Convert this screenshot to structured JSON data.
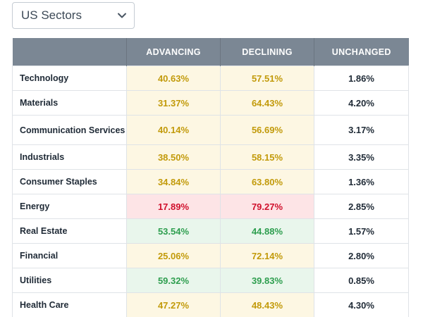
{
  "selector": {
    "label": "US Sectors"
  },
  "table": {
    "headers": [
      "",
      "ADVANCING",
      "DECLINING",
      "UNCHANGED"
    ],
    "rows": [
      {
        "name": "Technology",
        "advancing": "40.63%",
        "declining": "57.51%",
        "unchanged": "1.86%",
        "tone": "yellow"
      },
      {
        "name": "Materials",
        "advancing": "31.37%",
        "declining": "64.43%",
        "unchanged": "4.20%",
        "tone": "yellow"
      },
      {
        "name": "Communication Services",
        "advancing": "40.14%",
        "declining": "56.69%",
        "unchanged": "3.17%",
        "tone": "yellow"
      },
      {
        "name": "Industrials",
        "advancing": "38.50%",
        "declining": "58.15%",
        "unchanged": "3.35%",
        "tone": "yellow"
      },
      {
        "name": "Consumer Staples",
        "advancing": "34.84%",
        "declining": "63.80%",
        "unchanged": "1.36%",
        "tone": "yellow"
      },
      {
        "name": "Energy",
        "advancing": "17.89%",
        "declining": "79.27%",
        "unchanged": "2.85%",
        "tone": "red"
      },
      {
        "name": "Real Estate",
        "advancing": "53.54%",
        "declining": "44.88%",
        "unchanged": "1.57%",
        "tone": "green"
      },
      {
        "name": "Financial",
        "advancing": "25.06%",
        "declining": "72.14%",
        "unchanged": "2.80%",
        "tone": "yellow"
      },
      {
        "name": "Utilities",
        "advancing": "59.32%",
        "declining": "39.83%",
        "unchanged": "0.85%",
        "tone": "green"
      },
      {
        "name": "Health Care",
        "advancing": "47.27%",
        "declining": "48.43%",
        "unchanged": "4.30%",
        "tone": "yellow"
      }
    ]
  },
  "colors": {
    "header_bg": "#7b8794",
    "yellow_bg": "#fdf7e3",
    "yellow_text": "#c29a0a",
    "red_bg": "#fde4e6",
    "red_text": "#d0102c",
    "green_bg": "#e9f6ec",
    "green_text": "#2e9e4f"
  },
  "icons": {
    "selector_chevron": "chevron-down-icon"
  }
}
